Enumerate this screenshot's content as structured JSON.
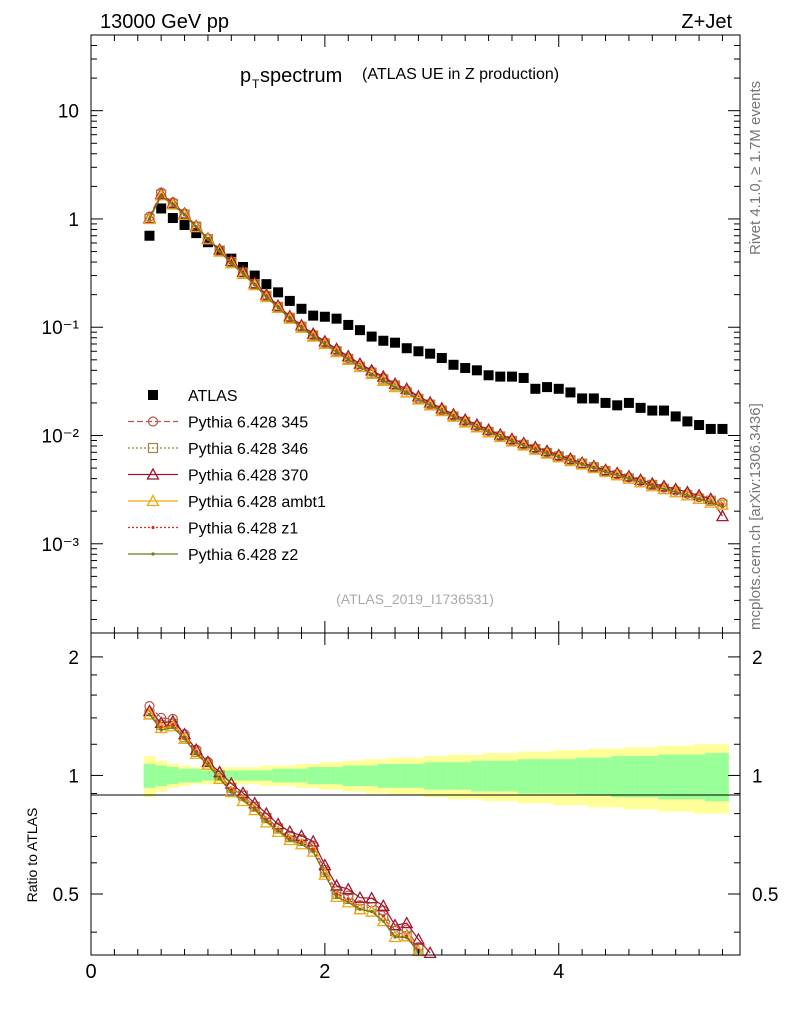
{
  "header": {
    "left": "13000 GeV pp",
    "right": "Z+Jet"
  },
  "title": {
    "main": "p",
    "sub": "T",
    "rest": "spectrum",
    "note": "(ATLAS UE in Z production)"
  },
  "side_labels": {
    "rivet": "Rivet 4.1.0, ≥ 1.7M events",
    "mcplots": "mcplots.cern.ch [arXiv:1306.3436]"
  },
  "analysis_id": "(ATLAS_2019_I1736531)",
  "colors": {
    "data": "#000000",
    "band_inner": "#99ff99",
    "band_outer": "#ffff99",
    "p345": "#c2524f",
    "p346": "#a8843a",
    "p370": "#a01830",
    "ambt1": "#f2a60f",
    "z1": "#e0281e",
    "z2": "#707a18"
  },
  "chart_data": {
    "type": "scatter",
    "x": [
      0.5,
      0.6,
      0.7,
      0.8,
      0.9,
      1.0,
      1.1,
      1.2,
      1.3,
      1.4,
      1.5,
      1.6,
      1.7,
      1.8,
      1.9,
      2.0,
      2.1,
      2.2,
      2.3,
      2.4,
      2.5,
      2.6,
      2.7,
      2.8,
      2.9,
      3.0,
      3.1,
      3.2,
      3.3,
      3.4,
      3.5,
      3.6,
      3.7,
      3.8,
      3.9,
      4.0,
      4.1,
      4.2,
      4.3,
      4.4,
      4.5,
      4.6,
      4.7,
      4.8,
      4.9,
      5.0,
      5.1,
      5.2,
      5.3,
      5.4
    ],
    "xlim": [
      0,
      5.55
    ],
    "xticks": [
      0,
      2,
      4
    ],
    "main": {
      "ylim": [
        0.00015,
        50
      ],
      "yscale": "log",
      "yticks": [
        "10",
        "1",
        "10⁻¹",
        "10⁻²",
        "10⁻³"
      ],
      "ytick_values": [
        10,
        1,
        0.1,
        0.01,
        0.001
      ]
    },
    "ratio": {
      "ylabel": "Ratio to ATLAS",
      "ylim": [
        0.35,
        2.3
      ],
      "yscale": "log",
      "yticks": [
        "0.5",
        "1",
        "2"
      ],
      "ytick_values": [
        0.5,
        1,
        2
      ],
      "band_inner": [
        0.07,
        0.06,
        0.05,
        0.04,
        0.04,
        0.03,
        0.03,
        0.03,
        0.03,
        0.03,
        0.03,
        0.04,
        0.04,
        0.04,
        0.05,
        0.05,
        0.05,
        0.06,
        0.06,
        0.06,
        0.07,
        0.07,
        0.07,
        0.07,
        0.08,
        0.08,
        0.08,
        0.08,
        0.09,
        0.09,
        0.09,
        0.09,
        0.1,
        0.1,
        0.1,
        0.1,
        0.1,
        0.11,
        0.11,
        0.11,
        0.12,
        0.12,
        0.12,
        0.12,
        0.13,
        0.13,
        0.13,
        0.13,
        0.14,
        0.14
      ],
      "band_outer": [
        0.12,
        0.09,
        0.07,
        0.06,
        0.05,
        0.05,
        0.05,
        0.05,
        0.05,
        0.05,
        0.06,
        0.06,
        0.06,
        0.07,
        0.07,
        0.08,
        0.08,
        0.09,
        0.09,
        0.1,
        0.1,
        0.11,
        0.11,
        0.11,
        0.12,
        0.12,
        0.13,
        0.13,
        0.13,
        0.14,
        0.14,
        0.14,
        0.15,
        0.15,
        0.15,
        0.16,
        0.16,
        0.16,
        0.17,
        0.17,
        0.17,
        0.18,
        0.18,
        0.18,
        0.19,
        0.19,
        0.19,
        0.2,
        0.2,
        0.2
      ]
    },
    "series": [
      {
        "name": "ATLAS",
        "kind": "data",
        "color_key": "data",
        "values": [
          0.7,
          1.25,
          1.02,
          0.88,
          0.74,
          0.61,
          0.51,
          0.43,
          0.36,
          0.3,
          0.25,
          0.21,
          0.175,
          0.148,
          0.128,
          0.125,
          0.12,
          0.105,
          0.094,
          0.082,
          0.075,
          0.072,
          0.064,
          0.06,
          0.057,
          0.052,
          0.045,
          0.042,
          0.04,
          0.036,
          0.035,
          0.035,
          0.034,
          0.027,
          0.028,
          0.027,
          0.025,
          0.022,
          0.022,
          0.02,
          0.019,
          0.02,
          0.018,
          0.017,
          0.017,
          0.015,
          0.0135,
          0.0125,
          0.0115,
          0.0115
        ]
      },
      {
        "name": "Pythia 6.428 345",
        "kind": "mc",
        "color_key": "p345",
        "marker": "circle",
        "dash": "6,3",
        "values": [
          1.05,
          1.75,
          1.42,
          1.12,
          0.86,
          0.66,
          0.51,
          0.4,
          0.32,
          0.25,
          0.195,
          0.155,
          0.123,
          0.102,
          0.085,
          0.072,
          0.061,
          0.052,
          0.044,
          0.039,
          0.034,
          0.029,
          0.026,
          0.022,
          0.0195,
          0.0172,
          0.0152,
          0.0136,
          0.0122,
          0.011,
          0.0099,
          0.009,
          0.0083,
          0.0076,
          0.007,
          0.0065,
          0.006,
          0.0055,
          0.0051,
          0.0047,
          0.0044,
          0.0041,
          0.0038,
          0.0035,
          0.0033,
          0.0031,
          0.0029,
          0.0027,
          0.0025,
          0.0024
        ]
      },
      {
        "name": "Pythia 6.428 346",
        "kind": "mc",
        "color_key": "p346",
        "marker": "square",
        "dash": "2,2",
        "values": [
          1.0,
          1.68,
          1.38,
          1.1,
          0.85,
          0.65,
          0.51,
          0.4,
          0.32,
          0.25,
          0.195,
          0.154,
          0.122,
          0.101,
          0.084,
          0.071,
          0.06,
          0.051,
          0.043,
          0.038,
          0.033,
          0.029,
          0.025,
          0.0218,
          0.0193,
          0.017,
          0.015,
          0.0134,
          0.012,
          0.0108,
          0.0098,
          0.0089,
          0.0082,
          0.0075,
          0.0069,
          0.0064,
          0.0059,
          0.0055,
          0.0051,
          0.0047,
          0.0043,
          0.004,
          0.0037,
          0.0035,
          0.0032,
          0.003,
          0.0028,
          0.0026,
          0.0025,
          0.0023
        ]
      },
      {
        "name": "Pythia 6.428 370",
        "kind": "mc",
        "color_key": "p370",
        "marker": "triangle",
        "dash": "",
        "values": [
          1.02,
          1.7,
          1.4,
          1.12,
          0.86,
          0.66,
          0.52,
          0.41,
          0.325,
          0.255,
          0.2,
          0.158,
          0.126,
          0.104,
          0.087,
          0.074,
          0.063,
          0.054,
          0.046,
          0.04,
          0.035,
          0.03,
          0.027,
          0.023,
          0.0202,
          0.0178,
          0.0157,
          0.014,
          0.0126,
          0.0113,
          0.0102,
          0.0093,
          0.0085,
          0.0078,
          0.0072,
          0.0066,
          0.0061,
          0.0056,
          0.0052,
          0.0048,
          0.0045,
          0.0042,
          0.0039,
          0.0036,
          0.0034,
          0.0032,
          0.003,
          0.0028,
          0.0026,
          0.0018
        ]
      },
      {
        "name": "Pythia 6.428 ambt1",
        "kind": "mc",
        "color_key": "ambt1",
        "marker": "triangle",
        "dash": "",
        "values": [
          1.0,
          1.65,
          1.36,
          1.09,
          0.84,
          0.65,
          0.5,
          0.39,
          0.31,
          0.245,
          0.19,
          0.151,
          0.12,
          0.099,
          0.082,
          0.07,
          0.059,
          0.05,
          0.043,
          0.037,
          0.032,
          0.028,
          0.025,
          0.0215,
          0.019,
          0.0168,
          0.0149,
          0.0132,
          0.0119,
          0.0107,
          0.0097,
          0.0088,
          0.0081,
          0.0074,
          0.0068,
          0.0063,
          0.0058,
          0.0054,
          0.005,
          0.0046,
          0.0043,
          0.004,
          0.0037,
          0.0034,
          0.0032,
          0.003,
          0.0028,
          0.0026,
          0.0024,
          0.0023
        ]
      },
      {
        "name": "Pythia 6.428 z1",
        "kind": "mc",
        "color_key": "z1",
        "marker": "dot",
        "dash": "2,2",
        "values": [
          1.0,
          1.66,
          1.37,
          1.1,
          0.85,
          0.65,
          0.5,
          0.395,
          0.315,
          0.248,
          0.193,
          0.153,
          0.121,
          0.1,
          0.083,
          0.07,
          0.06,
          0.051,
          0.043,
          0.037,
          0.033,
          0.028,
          0.025,
          0.0216,
          0.0191,
          0.0169,
          0.015,
          0.0133,
          0.012,
          0.0108,
          0.0097,
          0.0089,
          0.0081,
          0.0075,
          0.0069,
          0.0063,
          0.0059,
          0.0054,
          0.005,
          0.0046,
          0.0043,
          0.004,
          0.0037,
          0.0035,
          0.0032,
          0.003,
          0.0028,
          0.0026,
          0.0024,
          0.0023
        ]
      },
      {
        "name": "Pythia 6.428 z2",
        "kind": "mc",
        "color_key": "z2",
        "marker": "dot",
        "dash": "",
        "values": [
          1.0,
          1.63,
          1.35,
          1.09,
          0.84,
          0.65,
          0.5,
          0.39,
          0.312,
          0.246,
          0.191,
          0.152,
          0.12,
          0.099,
          0.082,
          0.07,
          0.059,
          0.05,
          0.043,
          0.037,
          0.032,
          0.028,
          0.0248,
          0.0214,
          0.019,
          0.0168,
          0.0149,
          0.0133,
          0.0119,
          0.0107,
          0.0097,
          0.0088,
          0.0081,
          0.0074,
          0.0068,
          0.0063,
          0.0058,
          0.0054,
          0.005,
          0.0046,
          0.0043,
          0.004,
          0.0037,
          0.0034,
          0.0032,
          0.003,
          0.0028,
          0.0026,
          0.0024,
          0.0022
        ]
      }
    ]
  }
}
